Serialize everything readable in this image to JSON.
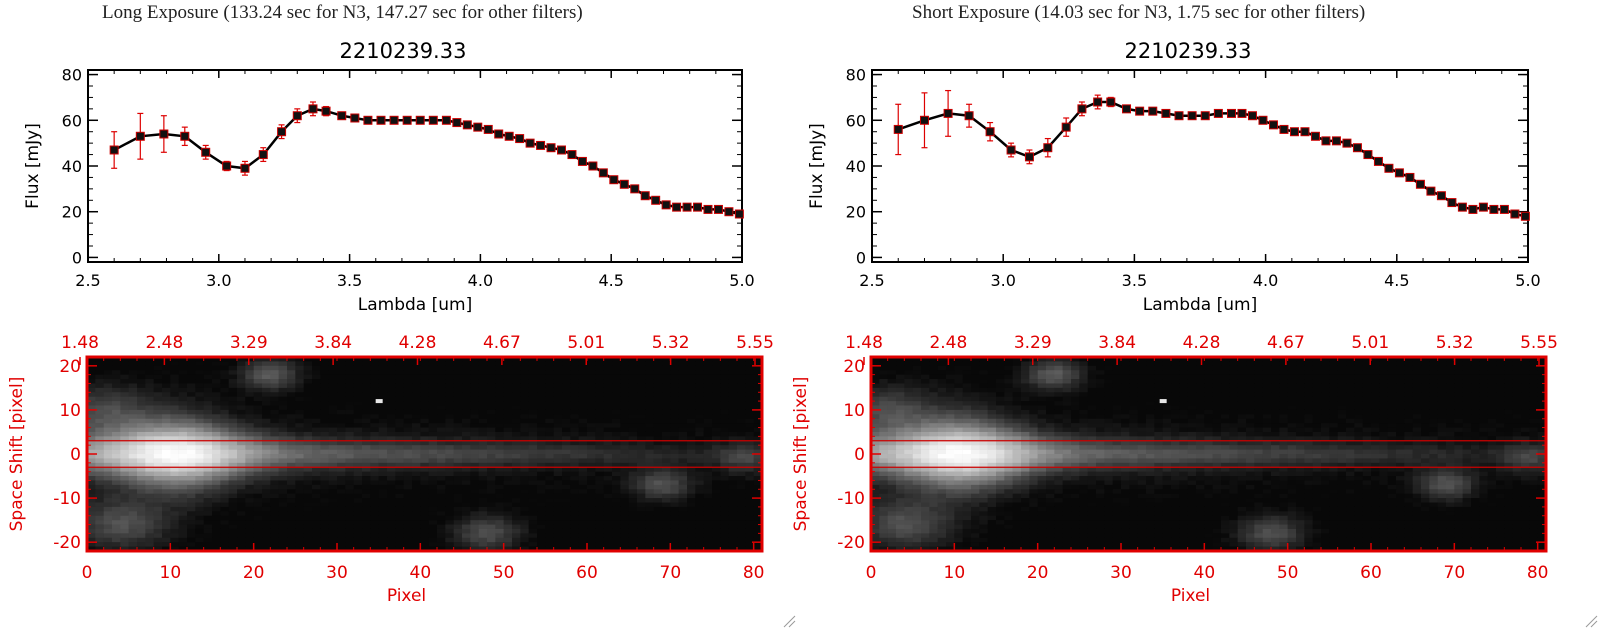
{
  "panels": [
    {
      "title": "Long Exposure (133.24 sec for N3, 147.27 sec for other filters)"
    },
    {
      "title": "Short Exposure (14.03 sec for N3, 1.75 sec for other filters)"
    }
  ],
  "colors": {
    "spectrum": "#000000",
    "errorbar": "#dd0000",
    "image_axes": "#e00000",
    "background": "#ffffff"
  },
  "chart_data": [
    {
      "type": "line",
      "title": "2210239.33",
      "xlabel": "Lambda [um]",
      "ylabel": "Flux [mJy]",
      "xlim": [
        2.5,
        5.0
      ],
      "ylim": [
        -2,
        82
      ],
      "xticks": [
        "2.5",
        "3.0",
        "3.5",
        "4.0",
        "4.5",
        "5.0"
      ],
      "xtick_values": [
        2.5,
        3.0,
        3.5,
        4.0,
        4.5,
        5.0
      ],
      "yticks": [
        "0",
        "20",
        "40",
        "60",
        "80"
      ],
      "ytick_values": [
        0,
        20,
        40,
        60,
        80
      ],
      "x": [
        2.6,
        2.7,
        2.79,
        2.87,
        2.95,
        3.03,
        3.1,
        3.17,
        3.24,
        3.3,
        3.36,
        3.41,
        3.47,
        3.52,
        3.57,
        3.62,
        3.67,
        3.72,
        3.77,
        3.82,
        3.87,
        3.91,
        3.95,
        3.99,
        4.03,
        4.07,
        4.11,
        4.15,
        4.19,
        4.23,
        4.27,
        4.31,
        4.35,
        4.39,
        4.43,
        4.47,
        4.51,
        4.55,
        4.59,
        4.63,
        4.67,
        4.71,
        4.75,
        4.79,
        4.83,
        4.87,
        4.91,
        4.95,
        4.99
      ],
      "y": [
        47,
        53,
        54,
        53,
        46,
        40,
        39,
        45,
        55,
        62,
        65,
        64,
        62,
        61,
        60,
        60,
        60,
        60,
        60,
        60,
        60,
        59,
        58,
        57,
        56,
        54,
        53,
        52,
        50,
        49,
        48,
        47,
        45,
        42,
        40,
        37,
        34,
        32,
        30,
        27,
        25,
        23,
        22,
        22,
        22,
        21,
        21,
        20,
        19
      ],
      "yerr": [
        8,
        10,
        8,
        4,
        3,
        2,
        3,
        3,
        3,
        3,
        3,
        2,
        1,
        1,
        1,
        1,
        1,
        1,
        1,
        1,
        1,
        1,
        1,
        1,
        1,
        1,
        1,
        1,
        1,
        1,
        1,
        1,
        1,
        1,
        1,
        1,
        1,
        1,
        1,
        1,
        1,
        1,
        1,
        1,
        1,
        1,
        1,
        1,
        1
      ]
    },
    {
      "type": "heatmap",
      "xlabel": "Pixel",
      "ylabel": "Space Shift [pixel]",
      "xlim": [
        0,
        81
      ],
      "ylim": [
        -22,
        22
      ],
      "xticks": [
        "0",
        "10",
        "20",
        "30",
        "40",
        "50",
        "60",
        "70",
        "80"
      ],
      "xtick_values": [
        0,
        10,
        20,
        30,
        40,
        50,
        60,
        70,
        80
      ],
      "yticks": [
        "-20",
        "-10",
        "0",
        "10",
        "20"
      ],
      "ytick_values": [
        -20,
        -10,
        0,
        10,
        20
      ],
      "top_ticks": [
        "1.48",
        "2.48",
        "3.29",
        "3.84",
        "4.28",
        "4.67",
        "5.01",
        "5.32",
        "5.55"
      ],
      "aperture_lines": [
        3,
        -3
      ],
      "trace": {
        "center": 0,
        "peak_pixel": 11,
        "length": 80
      },
      "blobs": [
        {
          "x": 22,
          "y": 18,
          "sigma": 2.5,
          "amp": 0.35
        },
        {
          "x": 2,
          "y": 10,
          "sigma": 4,
          "amp": 0.25
        },
        {
          "x": 4,
          "y": -16,
          "sigma": 4,
          "amp": 0.3
        },
        {
          "x": 48,
          "y": -18,
          "sigma": 3,
          "amp": 0.3
        },
        {
          "x": 69,
          "y": -7,
          "sigma": 2.5,
          "amp": 0.3
        },
        {
          "x": 79,
          "y": -1,
          "sigma": 2.5,
          "amp": 0.2
        }
      ],
      "hot_pixel": {
        "x": 35,
        "y": 12
      }
    },
    {
      "type": "line",
      "title": "2210239.33",
      "xlabel": "Lambda [um]",
      "ylabel": "Flux [mJy]",
      "xlim": [
        2.5,
        5.0
      ],
      "ylim": [
        -2,
        82
      ],
      "xticks": [
        "2.5",
        "3.0",
        "3.5",
        "4.0",
        "4.5",
        "5.0"
      ],
      "xtick_values": [
        2.5,
        3.0,
        3.5,
        4.0,
        4.5,
        5.0
      ],
      "yticks": [
        "0",
        "20",
        "40",
        "60",
        "80"
      ],
      "ytick_values": [
        0,
        20,
        40,
        60,
        80
      ],
      "x": [
        2.6,
        2.7,
        2.79,
        2.87,
        2.95,
        3.03,
        3.1,
        3.17,
        3.24,
        3.3,
        3.36,
        3.41,
        3.47,
        3.52,
        3.57,
        3.62,
        3.67,
        3.72,
        3.77,
        3.82,
        3.87,
        3.91,
        3.95,
        3.99,
        4.03,
        4.07,
        4.11,
        4.15,
        4.19,
        4.23,
        4.27,
        4.31,
        4.35,
        4.39,
        4.43,
        4.47,
        4.51,
        4.55,
        4.59,
        4.63,
        4.67,
        4.71,
        4.75,
        4.79,
        4.83,
        4.87,
        4.91,
        4.95,
        4.99
      ],
      "y": [
        56,
        60,
        63,
        62,
        55,
        47,
        44,
        48,
        57,
        65,
        68,
        68,
        65,
        64,
        64,
        63,
        62,
        62,
        62,
        63,
        63,
        63,
        62,
        60,
        58,
        56,
        55,
        55,
        53,
        51,
        51,
        50,
        48,
        45,
        42,
        39,
        37,
        35,
        32,
        29,
        27,
        24,
        22,
        21,
        22,
        21,
        21,
        19,
        18
      ],
      "yerr": [
        11,
        12,
        10,
        5,
        4,
        3,
        3,
        4,
        4,
        3,
        3,
        2,
        1,
        1,
        1,
        1,
        1,
        1,
        1,
        1,
        1,
        1,
        1,
        1,
        1,
        1,
        1,
        1,
        1,
        1,
        1,
        1,
        1,
        1,
        1,
        1,
        1,
        1,
        1,
        1,
        1,
        1,
        1,
        1,
        1,
        1,
        1,
        1,
        1
      ]
    },
    {
      "type": "heatmap",
      "xlabel": "Pixel",
      "ylabel": "Space Shift [pixel]",
      "xlim": [
        0,
        81
      ],
      "ylim": [
        -22,
        22
      ],
      "xticks": [
        "0",
        "10",
        "20",
        "30",
        "40",
        "50",
        "60",
        "70",
        "80"
      ],
      "xtick_values": [
        0,
        10,
        20,
        30,
        40,
        50,
        60,
        70,
        80
      ],
      "yticks": [
        "-20",
        "-10",
        "0",
        "10",
        "20"
      ],
      "ytick_values": [
        -20,
        -10,
        0,
        10,
        20
      ],
      "top_ticks": [
        "1.48",
        "2.48",
        "3.29",
        "3.84",
        "4.28",
        "4.67",
        "5.01",
        "5.32",
        "5.55"
      ],
      "aperture_lines": [
        3,
        -3
      ],
      "trace": {
        "center": 0,
        "peak_pixel": 11,
        "length": 80
      },
      "blobs": [
        {
          "x": 22,
          "y": 18,
          "sigma": 2.5,
          "amp": 0.35
        },
        {
          "x": 2,
          "y": 10,
          "sigma": 4,
          "amp": 0.25
        },
        {
          "x": 4,
          "y": -16,
          "sigma": 4,
          "amp": 0.3
        },
        {
          "x": 48,
          "y": -18,
          "sigma": 3,
          "amp": 0.3
        },
        {
          "x": 69,
          "y": -7,
          "sigma": 2.5,
          "amp": 0.3
        },
        {
          "x": 79,
          "y": -1,
          "sigma": 2.5,
          "amp": 0.2
        }
      ],
      "hot_pixel": {
        "x": 35,
        "y": 12
      }
    }
  ]
}
